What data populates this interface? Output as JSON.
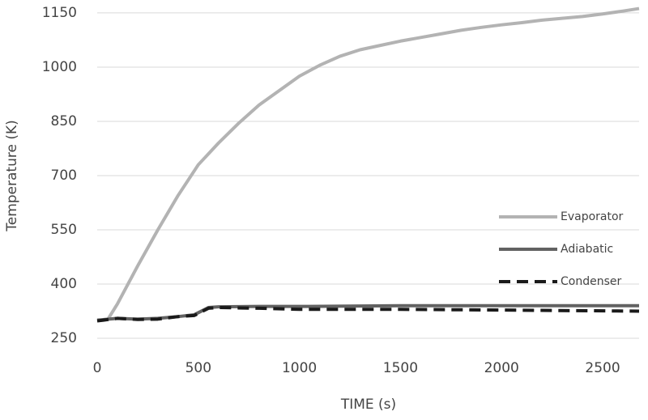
{
  "chart_data": {
    "type": "line",
    "xlabel": "TIME (s)",
    "ylabel": "Temperature (K)",
    "xlim": [
      0,
      2680
    ],
    "ylim": [
      250,
      1170
    ],
    "xticks": [
      0,
      500,
      1000,
      1500,
      2000,
      2500
    ],
    "yticks": [
      250,
      400,
      550,
      700,
      850,
      1000,
      1150
    ],
    "grid": true,
    "legend": "right",
    "series": [
      {
        "name": "Evaporator",
        "color": "#b3b3b3",
        "dash": false,
        "x": [
          50,
          100,
          200,
          300,
          400,
          500,
          600,
          700,
          800,
          900,
          1000,
          1100,
          1200,
          1300,
          1400,
          1500,
          1600,
          1700,
          1800,
          1900,
          2000,
          2100,
          2200,
          2300,
          2400,
          2500,
          2600,
          2680
        ],
        "values": [
          300,
          345,
          450,
          550,
          645,
          730,
          790,
          845,
          895,
          935,
          975,
          1005,
          1030,
          1048,
          1060,
          1072,
          1082,
          1092,
          1102,
          1110,
          1117,
          1123,
          1130,
          1135,
          1140,
          1147,
          1155,
          1162
        ]
      },
      {
        "name": "Adiabatic",
        "color": "#626262",
        "dash": false,
        "x": [
          0,
          100,
          200,
          300,
          400,
          480,
          550,
          600,
          800,
          1000,
          1500,
          2000,
          2680
        ],
        "values": [
          300,
          305,
          303,
          305,
          310,
          315,
          335,
          337,
          338,
          338,
          340,
          340,
          340
        ]
      },
      {
        "name": "Condenser",
        "color": "#1a1a1a",
        "dash": true,
        "x": [
          0,
          100,
          200,
          300,
          400,
          480,
          550,
          600,
          800,
          1000,
          1500,
          2000,
          2680
        ],
        "values": [
          298,
          305,
          302,
          303,
          310,
          313,
          333,
          335,
          333,
          330,
          330,
          328,
          325
        ]
      }
    ]
  }
}
